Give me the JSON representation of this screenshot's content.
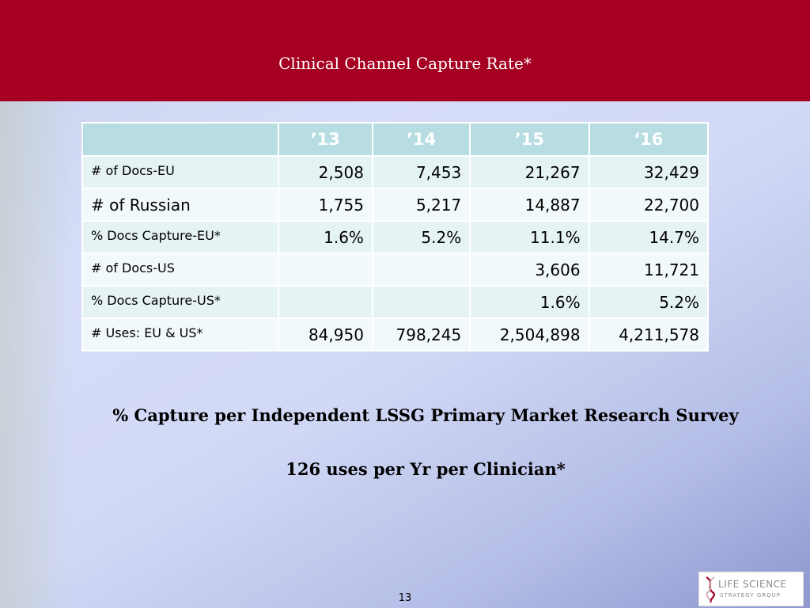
{
  "slide": {
    "title": "Clinical Channel Capture Rate*",
    "page_number": "13"
  },
  "table": {
    "headers": [
      "",
      "’13",
      "’14",
      "’15",
      "‘16"
    ],
    "rows": [
      {
        "label": "# of Docs-EU",
        "values": [
          "2,508",
          "7,453",
          "21,267",
          "32,429"
        ]
      },
      {
        "label": "# of Russian",
        "values": [
          "1,755",
          "5,217",
          "14,887",
          "22,700"
        ]
      },
      {
        "label": "% Docs Capture-EU*",
        "values": [
          "1.6%",
          "5.2%",
          "11.1%",
          "14.7%"
        ]
      },
      {
        "label": "# of Docs-US",
        "values": [
          "",
          "",
          "3,606",
          "11,721"
        ]
      },
      {
        "label": "% Docs Capture-US*",
        "values": [
          "",
          "",
          "1.6%",
          "5.2%"
        ]
      },
      {
        "label": "# Uses: EU & US*",
        "values": [
          "84,950",
          "798,245",
          "2,504,898",
          "4,211,578"
        ]
      }
    ]
  },
  "notes": {
    "line1": "% Capture per Independent LSSG Primary Market Research Survey",
    "line2": "126 uses per Yr per Clinician*"
  },
  "logo": {
    "line1": "LIFE SCIENCE",
    "line2": "STRATEGY GROUP",
    "icon": "dna-helix-icon",
    "color": "#a50021"
  },
  "colors": {
    "header_band": "#a50021",
    "table_header": "#b7dde2",
    "row_band_1": "#e6f3f5",
    "row_band_2": "#f2f9fa"
  }
}
